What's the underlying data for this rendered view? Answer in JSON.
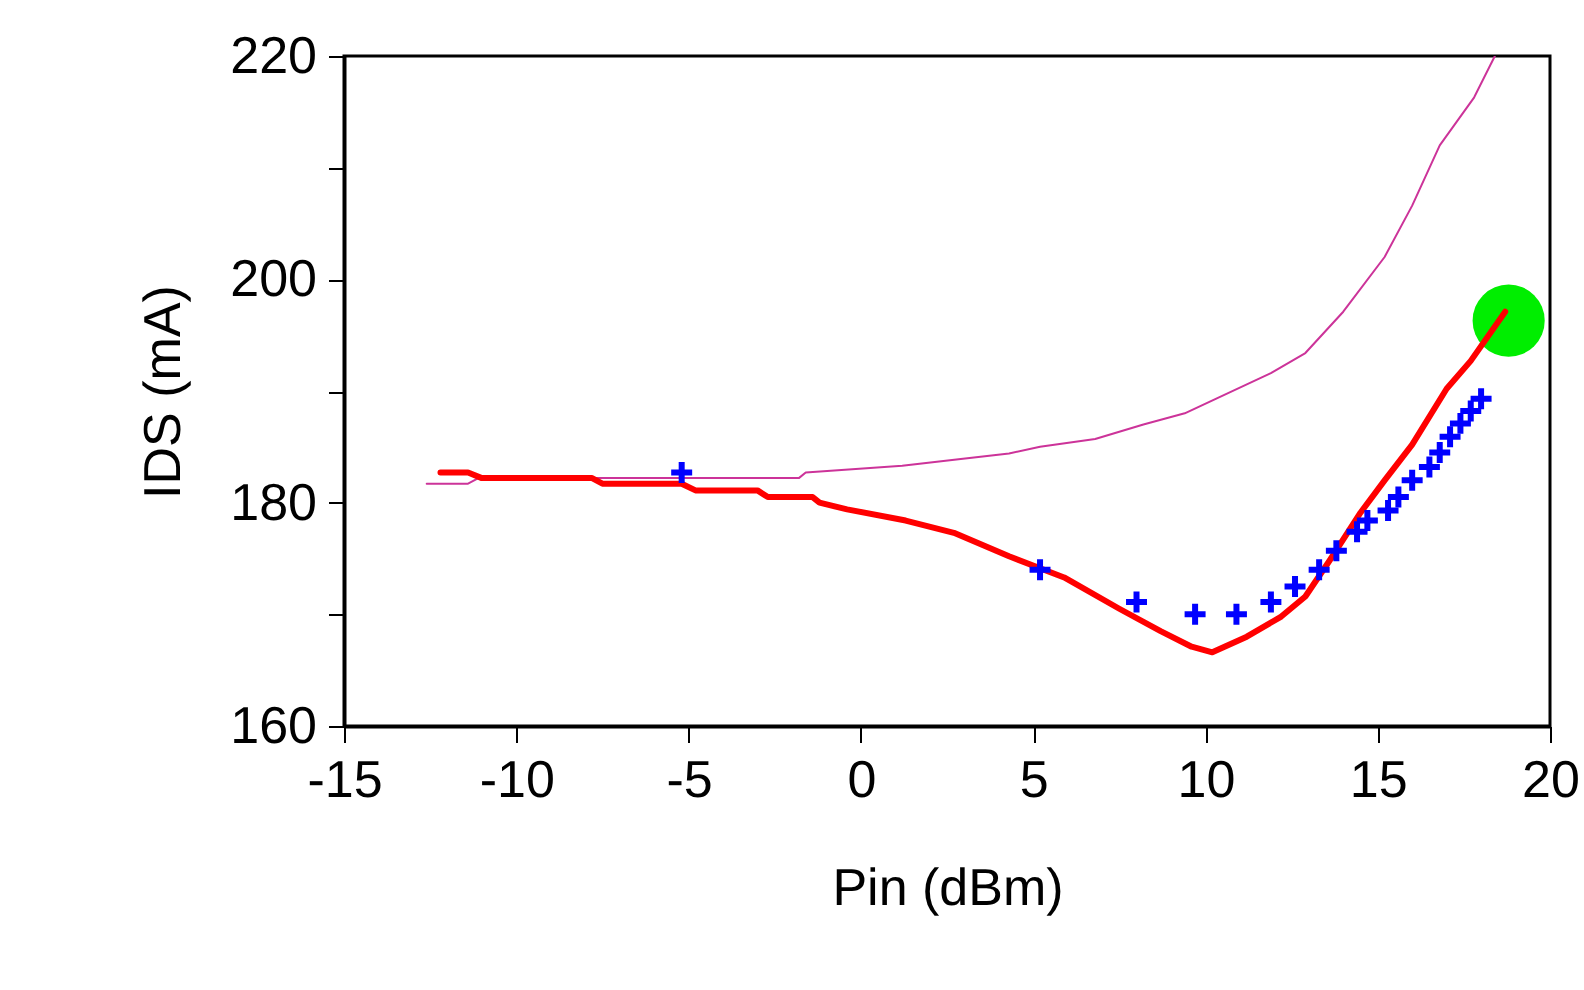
{
  "chart_data": {
    "type": "line",
    "xlabel": "Pin (dBm)",
    "ylabel": "IDS (mA)",
    "xlim": [
      -15,
      20
    ],
    "xticks": [
      -15,
      -10,
      -5,
      0,
      5,
      10,
      15,
      20
    ],
    "ylim": [
      160,
      220
    ],
    "yticks": [
      160,
      {
        "value": 170,
        "label": null
      },
      180,
      {
        "value": 190,
        "label": null
      },
      200,
      {
        "value": 210,
        "label": null
      },
      220
    ],
    "grid": false,
    "series": [
      {
        "color": "#cc3399",
        "marker": "none",
        "x": [
          -12.6,
          -11.4,
          -11.1,
          -1.8,
          -1.6,
          1.2,
          2.9,
          4.3,
          5.2,
          6.8,
          8.2,
          9.4,
          10.3,
          11.9,
          12.9,
          14.0,
          15.2,
          16.0,
          16.8,
          17.8,
          18.4
        ],
        "values": [
          181.7,
          181.7,
          182.2,
          182.2,
          182.7,
          183.3,
          183.9,
          184.4,
          185.0,
          185.7,
          187.0,
          188.0,
          189.3,
          191.6,
          193.4,
          197.1,
          202.0,
          206.6,
          212.0,
          216.3,
          220.0
        ]
      },
      {
        "color": "#ff0000",
        "marker": "none",
        "x": [
          -12.2,
          -11.4,
          -11.0,
          -7.8,
          -7.5,
          -5.2,
          -4.8,
          -3.0,
          -2.7,
          -1.4,
          -1.2,
          -0.4,
          1.3,
          2.7,
          4.3,
          5.9,
          7.5,
          8.7,
          9.6,
          10.2,
          11.2,
          12.2,
          12.9,
          13.6,
          14.5,
          15.2,
          16.0,
          17.0,
          17.7,
          18.7
        ],
        "values": [
          182.7,
          182.7,
          182.2,
          182.2,
          181.7,
          181.7,
          181.1,
          181.1,
          180.5,
          180.5,
          180.0,
          179.4,
          178.4,
          177.3,
          175.2,
          173.3,
          170.5,
          168.5,
          167.1,
          166.6,
          168.0,
          169.8,
          171.6,
          174.8,
          179.1,
          182.0,
          185.2,
          190.2,
          192.7,
          197.1
        ]
      },
      {
        "type": "scatter",
        "color": "#0000ff",
        "marker": "cross",
        "x": [
          -5.2,
          5.2,
          8.0,
          9.7,
          10.9,
          11.9,
          12.6,
          13.3,
          13.8,
          14.4,
          14.7,
          15.3,
          15.6,
          16.0,
          16.5,
          16.8,
          17.1,
          17.4,
          17.7,
          18.0
        ],
        "values": [
          182.7,
          174.0,
          171.1,
          170.0,
          170.0,
          171.1,
          172.5,
          174.0,
          175.7,
          177.4,
          178.4,
          179.3,
          180.5,
          182.0,
          183.2,
          184.5,
          185.9,
          187.1,
          188.2,
          189.3
        ]
      },
      {
        "type": "scatter",
        "color": "#00ee00",
        "marker": "circle",
        "x": [
          18.8
        ],
        "values": [
          196.3
        ]
      }
    ]
  }
}
